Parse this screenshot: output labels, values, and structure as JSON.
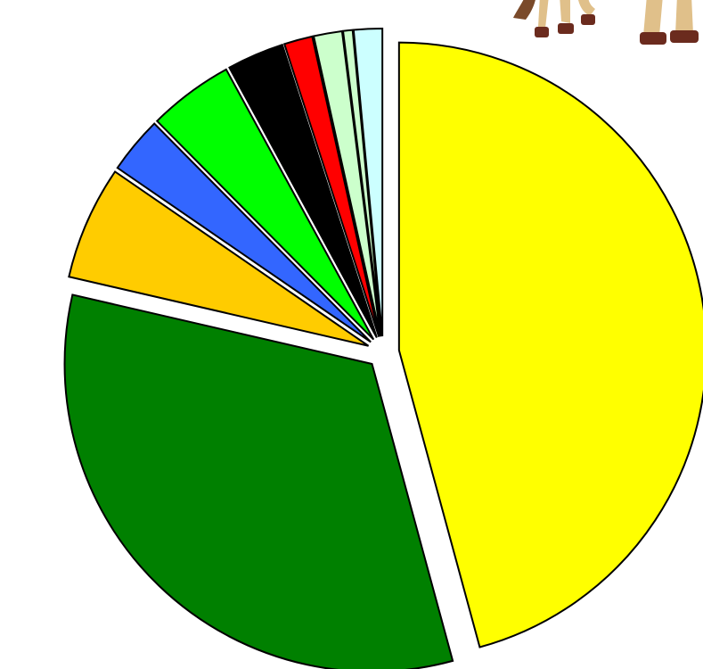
{
  "chart_data": {
    "type": "pie",
    "title": "",
    "start_angle_deg": 0,
    "direction": "clockwise",
    "exploded": true,
    "slices": [
      {
        "value": 46.0,
        "color": "#ffff00"
      },
      {
        "value": 33.0,
        "color": "#008000"
      },
      {
        "value": 6.0,
        "color": "#ffcc00"
      },
      {
        "value": 3.0,
        "color": "#3366ff"
      },
      {
        "value": 4.5,
        "color": "#00ff00"
      },
      {
        "value": 3.0,
        "color": "#000000"
      },
      {
        "value": 1.5,
        "color": "#ff0000"
      },
      {
        "value": 1.5,
        "color": "#ccffcc"
      },
      {
        "value": 0.5,
        "color": "#ccffcc"
      },
      {
        "value": 1.5,
        "color": "#ccffff"
      }
    ]
  },
  "decoration": {
    "icon": "camel-legs-clipart-icon"
  }
}
